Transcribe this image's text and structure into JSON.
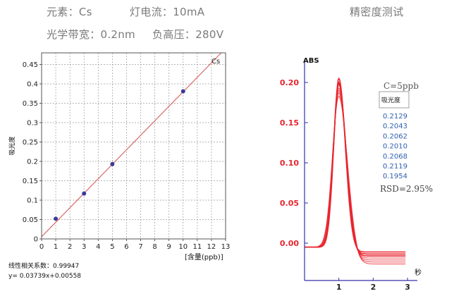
{
  "header": {
    "element": "元素：Cs",
    "lamp_current": "灯电流：10mA",
    "precision_title": "精密度测试",
    "bandwidth": "光学带宽：0.2nm",
    "negative_hv": "负高压：280V"
  },
  "chart_data": [
    {
      "type": "scatter",
      "title": "",
      "legend_label": "Cs",
      "xlabel": "[含量(ppb)]",
      "ylabel": "吸光度",
      "xlim": [
        0,
        13
      ],
      "ylim": [
        0,
        0.48
      ],
      "x_ticks": [
        0,
        1,
        2,
        3,
        4,
        5,
        6,
        7,
        8,
        9,
        10,
        11,
        12,
        13
      ],
      "y_ticks": [
        0,
        0.05,
        0.1,
        0.15,
        0.2,
        0.25,
        0.3,
        0.35,
        0.4,
        0.45
      ],
      "grid": true,
      "points": [
        {
          "x": 1,
          "y": 0.052
        },
        {
          "x": 3,
          "y": 0.117
        },
        {
          "x": 5,
          "y": 0.193
        },
        {
          "x": 10,
          "y": 0.381
        }
      ],
      "fit": {
        "slope": 0.03739,
        "intercept": 0.00558
      },
      "fit_line_x_range": [
        0,
        13
      ],
      "correlation_label": "线性相关系数：0.99947",
      "equation_label": "y= 0.03739x+0.00558",
      "colors": {
        "points": "#3a3a9a",
        "fit_line": "#d86a6a",
        "grid": "#9a9a9a"
      }
    },
    {
      "type": "line",
      "title": "",
      "ylabel": "ABS",
      "xlabel": "秒",
      "xlim": [
        0,
        3
      ],
      "ylim": [
        -0.05,
        0.22
      ],
      "x_ticks": [
        1,
        2,
        3
      ],
      "y_ticks": [
        0.0,
        0.05,
        0.1,
        0.15,
        0.2
      ],
      "y_tick_labels": [
        "0.00",
        "0.05",
        "0.10",
        "0.15",
        "0.20"
      ],
      "concentration_label": "C=5ppb",
      "table_header": "吸光度",
      "replicate_values": [
        "0.2129",
        "0.2043",
        "0.2062",
        "0.2010",
        "0.2068",
        "0.2119",
        "0.1954"
      ],
      "rsd_label": "RSD=2.95%",
      "peak_time": 1.0,
      "baseline": -0.005,
      "series_peaks": [
        0.205,
        0.2,
        0.198,
        0.193,
        0.19,
        0.187,
        0.183
      ],
      "colors": {
        "series": "#e8252e",
        "axis": "#3333aa",
        "tick_labels": "#e8252e",
        "table_values": "#3060b0"
      }
    }
  ]
}
